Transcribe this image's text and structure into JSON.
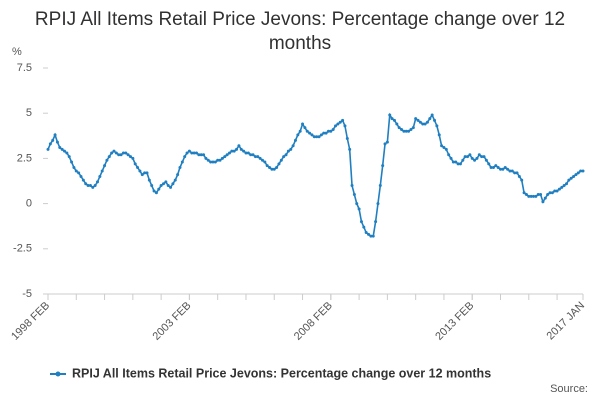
{
  "chart_data": {
    "type": "line",
    "title": "RPIJ All Items Retail Price Jevons: Percentage change over 12 months",
    "y_label": "%",
    "source": "Source:",
    "categories": [
      "1998 FEB",
      null,
      null,
      null,
      null,
      null,
      null,
      null,
      null,
      null,
      null,
      null,
      null,
      null,
      null,
      null,
      null,
      null,
      null,
      null,
      null,
      null,
      null,
      null,
      null,
      null,
      null,
      null,
      null,
      null,
      null,
      null,
      null,
      null,
      null,
      null,
      null,
      null,
      null,
      null,
      null,
      null,
      null,
      null,
      null,
      null,
      null,
      null,
      null,
      null,
      null,
      null,
      null,
      null,
      null,
      null,
      null,
      null,
      null,
      null,
      "2003 FEB",
      null,
      null,
      null,
      null,
      null,
      null,
      null,
      null,
      null,
      null,
      null,
      null,
      null,
      null,
      null,
      null,
      null,
      null,
      null,
      null,
      null,
      null,
      null,
      null,
      null,
      null,
      null,
      null,
      null,
      null,
      null,
      null,
      null,
      null,
      null,
      null,
      null,
      null,
      null,
      null,
      null,
      null,
      null,
      null,
      null,
      null,
      null,
      null,
      null,
      null,
      null,
      null,
      null,
      null,
      null,
      null,
      null,
      null,
      null,
      "2008 FEB",
      null,
      null,
      null,
      null,
      null,
      null,
      null,
      null,
      null,
      null,
      null,
      null,
      null,
      null,
      null,
      null,
      null,
      null,
      null,
      null,
      null,
      null,
      null,
      null,
      null,
      null,
      null,
      null,
      null,
      null,
      null,
      null,
      null,
      null,
      null,
      null,
      null,
      null,
      null,
      null,
      null,
      null,
      null,
      null,
      null,
      null,
      null,
      null,
      null,
      null,
      null,
      null,
      null,
      null,
      null,
      null,
      null,
      null,
      null,
      "2013 FEB",
      null,
      null,
      null,
      null,
      null,
      null,
      null,
      null,
      null,
      null,
      null,
      null,
      null,
      null,
      null,
      null,
      null,
      null,
      null,
      null,
      null,
      null,
      null,
      null,
      null,
      null,
      null,
      null,
      null,
      null,
      null,
      null,
      null,
      null,
      null,
      null,
      null,
      null,
      null,
      null,
      null,
      null,
      null,
      null,
      null,
      null,
      "2017 JAN"
    ],
    "series": [
      {
        "name": "RPIJ All Items Retail Price Jevons: Percentage change over 12 months",
        "color": "#1f7fc1",
        "values": [
          3.0,
          3.3,
          3.5,
          3.8,
          3.4,
          3.1,
          3.0,
          2.9,
          2.8,
          2.6,
          2.3,
          2.0,
          1.8,
          1.7,
          1.5,
          1.3,
          1.1,
          1.0,
          1.0,
          0.9,
          1.0,
          1.2,
          1.5,
          1.8,
          2.1,
          2.4,
          2.6,
          2.8,
          2.9,
          2.8,
          2.7,
          2.7,
          2.8,
          2.8,
          2.7,
          2.6,
          2.5,
          2.2,
          2.0,
          1.8,
          1.6,
          1.7,
          1.7,
          1.3,
          1.0,
          0.7,
          0.6,
          0.8,
          1.0,
          1.1,
          1.2,
          1.0,
          0.9,
          1.1,
          1.3,
          1.6,
          2.0,
          2.3,
          2.6,
          2.8,
          2.9,
          2.8,
          2.8,
          2.8,
          2.7,
          2.7,
          2.7,
          2.5,
          2.4,
          2.3,
          2.3,
          2.3,
          2.4,
          2.4,
          2.5,
          2.6,
          2.7,
          2.8,
          2.9,
          2.9,
          3.0,
          3.2,
          3.0,
          2.9,
          2.8,
          2.8,
          2.7,
          2.7,
          2.6,
          2.6,
          2.5,
          2.4,
          2.3,
          2.1,
          2.0,
          1.9,
          1.9,
          2.0,
          2.2,
          2.4,
          2.6,
          2.7,
          2.9,
          3.0,
          3.2,
          3.5,
          3.8,
          4.0,
          4.4,
          4.2,
          4.0,
          3.9,
          3.8,
          3.7,
          3.7,
          3.7,
          3.8,
          3.9,
          3.9,
          4.0,
          4.0,
          4.1,
          4.3,
          4.4,
          4.5,
          4.6,
          4.3,
          3.6,
          3.0,
          1.0,
          0.5,
          0.0,
          -0.3,
          -1.0,
          -1.3,
          -1.6,
          -1.7,
          -1.8,
          -1.8,
          -1.0,
          0.0,
          1.0,
          2.1,
          3.3,
          3.4,
          4.9,
          4.7,
          4.6,
          4.4,
          4.2,
          4.1,
          4.0,
          4.0,
          4.0,
          4.1,
          4.2,
          4.7,
          4.6,
          4.5,
          4.4,
          4.4,
          4.5,
          4.7,
          4.9,
          4.6,
          4.3,
          3.8,
          3.2,
          3.1,
          3.0,
          2.7,
          2.5,
          2.3,
          2.3,
          2.2,
          2.2,
          2.4,
          2.6,
          2.6,
          2.7,
          2.5,
          2.4,
          2.5,
          2.7,
          2.6,
          2.6,
          2.4,
          2.2,
          2.0,
          2.0,
          2.1,
          2.0,
          1.9,
          1.9,
          2.0,
          1.9,
          1.8,
          1.8,
          1.7,
          1.7,
          1.5,
          1.3,
          0.6,
          0.5,
          0.4,
          0.4,
          0.4,
          0.4,
          0.5,
          0.5,
          0.1,
          0.3,
          0.5,
          0.6,
          0.6,
          0.7,
          0.7,
          0.8,
          0.9,
          1.0,
          1.1,
          1.3,
          1.4,
          1.5,
          1.6,
          1.7,
          1.8,
          1.8
        ]
      }
    ],
    "ylim": [
      -5,
      7.5
    ],
    "yticks": [
      -5,
      -2.5,
      0,
      2.5,
      5,
      7.5
    ],
    "grid": false,
    "legend": "bottom"
  }
}
